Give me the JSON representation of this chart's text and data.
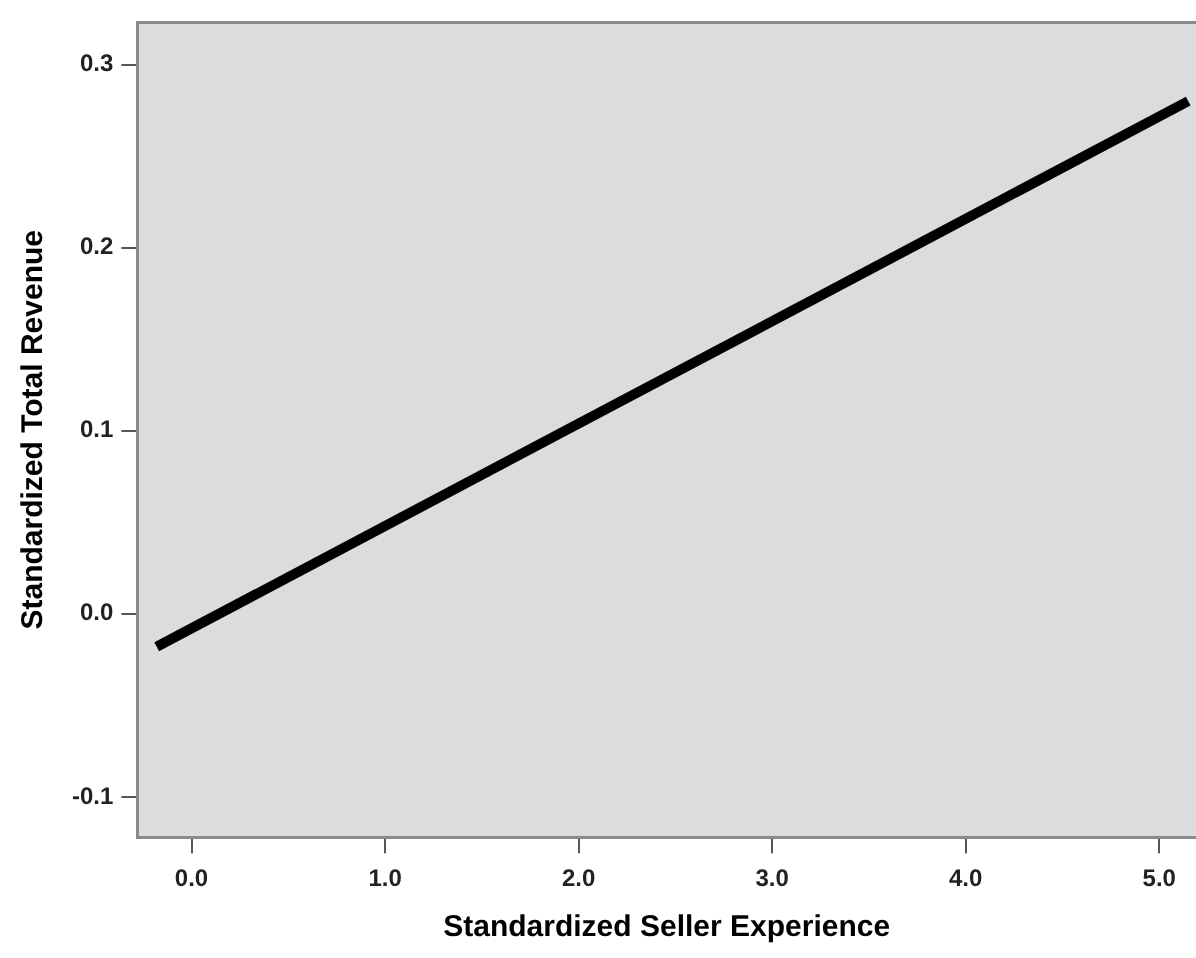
{
  "chart_data": {
    "type": "line",
    "xlabel": "Standardized Seller Experience",
    "ylabel": "Standardized Total Revenue",
    "x": [
      -0.18,
      5.15
    ],
    "series": [
      {
        "color": "#000000",
        "values": [
          -0.018,
          0.28
        ]
      }
    ],
    "xlim": [
      -0.28,
      5.19
    ],
    "xticks": [
      {
        "value": 0,
        "label": "0.0"
      },
      {
        "value": 1,
        "label": "1.0"
      },
      {
        "value": 2,
        "label": "2.0"
      },
      {
        "value": 3,
        "label": "3.0"
      },
      {
        "value": 4,
        "label": "4.0"
      },
      {
        "value": 5,
        "label": "5.0"
      }
    ],
    "ylim": [
      -0.122,
      0.323
    ],
    "yticks": [
      {
        "value": -0.1,
        "label": "-0.1"
      },
      {
        "value": 0,
        "label": "0.0"
      },
      {
        "value": 0.1,
        "label": "0.1"
      },
      {
        "value": 0.2,
        "label": "0.2"
      },
      {
        "value": 0.3,
        "label": "0.3"
      }
    ],
    "grid": false,
    "legend": false,
    "marker": "none",
    "line_style": "solid"
  }
}
